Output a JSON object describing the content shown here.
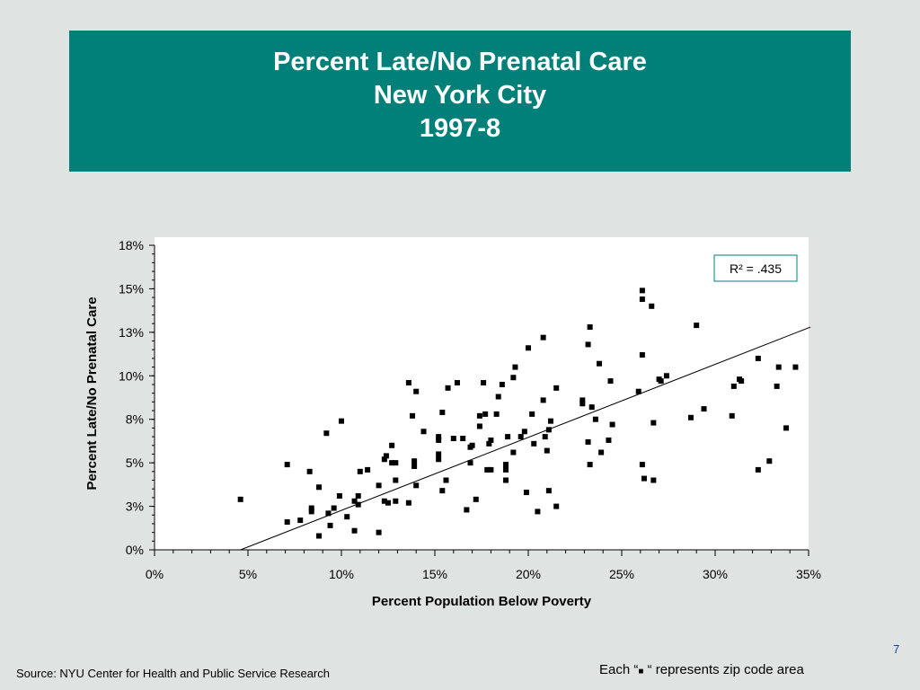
{
  "title": {
    "line1": "Percent Late/No Prenatal Care",
    "line2": "New York City",
    "line3": "1997-8"
  },
  "footer": {
    "source": "Source:  NYU Center for Health and Public Service Research",
    "legend_note_pre": "Each “",
    "legend_note_mark": "■",
    "legend_note_post": " “ represents zip code area",
    "page_number": "7"
  },
  "colors": {
    "background": "#dfe3e1",
    "title_fill": "#008079",
    "title_text": "#ffffff",
    "plot_fill": "#ffffff",
    "marker": "#000000",
    "r2_border": "#008079",
    "page_number": "#1a3fa3"
  },
  "chart_data": {
    "type": "scatter",
    "xlabel": "Percent Population Below Poverty",
    "ylabel": "Percent Late/No Prenatal Care",
    "xlim": [
      0,
      35
    ],
    "ylim": [
      0,
      17.5
    ],
    "x_ticks": [
      0,
      5,
      10,
      15,
      20,
      25,
      30,
      35
    ],
    "x_tick_labels": [
      "0%",
      "5%",
      "10%",
      "15%",
      "20%",
      "25%",
      "30%",
      "35%"
    ],
    "y_ticks": [
      0,
      2.5,
      5,
      7.5,
      10,
      12.5,
      15,
      17.5
    ],
    "y_tick_labels": [
      "0%",
      "3%",
      "5%",
      "8%",
      "10%",
      "13%",
      "15%",
      "18%"
    ],
    "annotation": "R² = .435",
    "annotation_position": "top-right",
    "grid": false,
    "trendline": [
      [
        4.6,
        0
      ],
      [
        35.1,
        12.8
      ]
    ],
    "points": [
      [
        4.6,
        2.9
      ],
      [
        7.1,
        4.9
      ],
      [
        7.1,
        1.6
      ],
      [
        7.8,
        1.7
      ],
      [
        8.3,
        4.5
      ],
      [
        8.4,
        2.4
      ],
      [
        8.4,
        2.2
      ],
      [
        8.8,
        3.6
      ],
      [
        8.8,
        0.8
      ],
      [
        9.2,
        6.7
      ],
      [
        9.3,
        2.1
      ],
      [
        9.4,
        1.4
      ],
      [
        9.6,
        2.4
      ],
      [
        9.9,
        3.1
      ],
      [
        10.0,
        7.4
      ],
      [
        10.3,
        1.9
      ],
      [
        10.7,
        2.8
      ],
      [
        10.7,
        1.1
      ],
      [
        10.9,
        2.6
      ],
      [
        10.9,
        3.1
      ],
      [
        11.0,
        4.5
      ],
      [
        11.4,
        4.6
      ],
      [
        12.0,
        3.7
      ],
      [
        12.0,
        1.0
      ],
      [
        12.3,
        2.8
      ],
      [
        12.3,
        5.2
      ],
      [
        12.4,
        5.4
      ],
      [
        12.5,
        2.7
      ],
      [
        12.7,
        5.0
      ],
      [
        12.7,
        6.0
      ],
      [
        12.9,
        5.0
      ],
      [
        12.9,
        4.0
      ],
      [
        12.9,
        2.8
      ],
      [
        13.6,
        9.6
      ],
      [
        13.6,
        2.7
      ],
      [
        13.8,
        7.7
      ],
      [
        13.9,
        5.1
      ],
      [
        13.9,
        4.8
      ],
      [
        14.0,
        9.1
      ],
      [
        14.0,
        3.7
      ],
      [
        14.4,
        6.8
      ],
      [
        15.2,
        6.5
      ],
      [
        15.2,
        6.3
      ],
      [
        15.2,
        5.5
      ],
      [
        15.2,
        5.2
      ],
      [
        15.4,
        7.9
      ],
      [
        15.4,
        3.4
      ],
      [
        15.6,
        4.0
      ],
      [
        15.7,
        9.3
      ],
      [
        16.0,
        6.4
      ],
      [
        16.2,
        9.6
      ],
      [
        16.5,
        6.4
      ],
      [
        16.7,
        2.3
      ],
      [
        16.9,
        5.9
      ],
      [
        16.9,
        5.0
      ],
      [
        17.0,
        6.0
      ],
      [
        17.2,
        2.9
      ],
      [
        17.4,
        7.1
      ],
      [
        17.4,
        7.7
      ],
      [
        17.6,
        9.6
      ],
      [
        17.7,
        7.8
      ],
      [
        17.8,
        4.6
      ],
      [
        17.9,
        6.1
      ],
      [
        18.0,
        6.3
      ],
      [
        18.0,
        4.6
      ],
      [
        18.3,
        7.8
      ],
      [
        18.4,
        8.8
      ],
      [
        18.6,
        9.5
      ],
      [
        18.8,
        4.9
      ],
      [
        18.8,
        4.6
      ],
      [
        18.8,
        4.0
      ],
      [
        18.9,
        6.5
      ],
      [
        19.2,
        5.6
      ],
      [
        19.2,
        9.9
      ],
      [
        19.3,
        10.5
      ],
      [
        19.6,
        6.5
      ],
      [
        19.8,
        6.8
      ],
      [
        19.9,
        3.3
      ],
      [
        20.0,
        11.6
      ],
      [
        20.2,
        7.8
      ],
      [
        20.3,
        6.1
      ],
      [
        20.5,
        2.2
      ],
      [
        20.8,
        12.2
      ],
      [
        20.8,
        8.6
      ],
      [
        20.9,
        6.5
      ],
      [
        21.0,
        5.7
      ],
      [
        21.1,
        3.4
      ],
      [
        21.1,
        6.9
      ],
      [
        21.2,
        7.4
      ],
      [
        21.5,
        2.5
      ],
      [
        21.5,
        9.3
      ],
      [
        22.9,
        8.6
      ],
      [
        22.9,
        8.4
      ],
      [
        23.2,
        11.8
      ],
      [
        23.2,
        6.2
      ],
      [
        23.3,
        12.8
      ],
      [
        23.3,
        4.9
      ],
      [
        23.4,
        8.2
      ],
      [
        23.6,
        7.5
      ],
      [
        23.8,
        10.7
      ],
      [
        23.9,
        5.6
      ],
      [
        24.3,
        6.3
      ],
      [
        24.4,
        9.7
      ],
      [
        24.5,
        7.2
      ],
      [
        25.9,
        9.1
      ],
      [
        26.1,
        11.2
      ],
      [
        26.1,
        14.9
      ],
      [
        26.1,
        14.4
      ],
      [
        26.1,
        4.9
      ],
      [
        26.2,
        4.1
      ],
      [
        26.6,
        14.0
      ],
      [
        26.7,
        4.0
      ],
      [
        26.7,
        7.3
      ],
      [
        27.0,
        9.8
      ],
      [
        27.1,
        9.7
      ],
      [
        27.4,
        10.0
      ],
      [
        28.7,
        7.6
      ],
      [
        29.0,
        12.9
      ],
      [
        29.4,
        8.1
      ],
      [
        30.9,
        7.7
      ],
      [
        31.0,
        9.4
      ],
      [
        31.3,
        9.8
      ],
      [
        31.4,
        9.7
      ],
      [
        32.3,
        11.0
      ],
      [
        32.3,
        4.6
      ],
      [
        32.9,
        5.1
      ],
      [
        33.3,
        9.4
      ],
      [
        33.4,
        10.5
      ],
      [
        33.8,
        7.0
      ],
      [
        34.3,
        10.5
      ]
    ]
  }
}
